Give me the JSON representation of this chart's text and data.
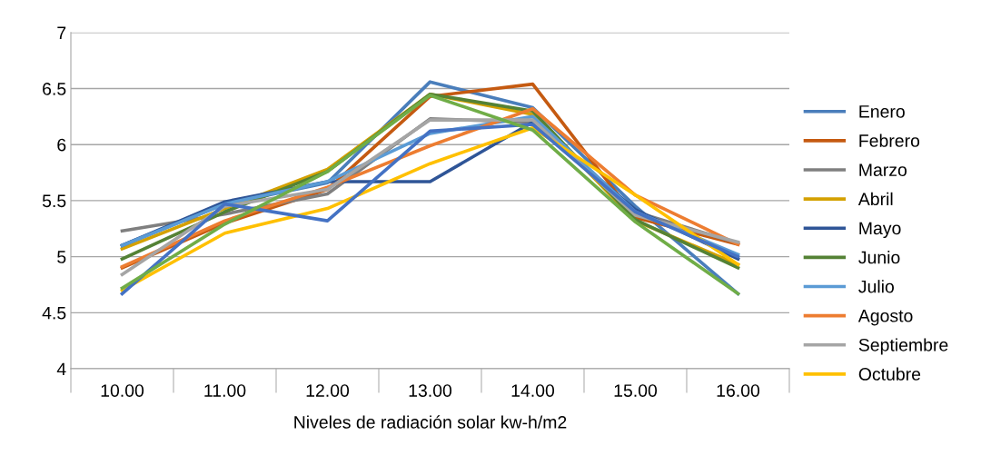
{
  "chart_data": {
    "type": "line",
    "xlabel": "Niveles de radiación solar kw-h/m2",
    "categories": [
      "10.00",
      "11.00",
      "12.00",
      "13.00",
      "14.00",
      "15.00",
      "16.00"
    ],
    "ylim": [
      4,
      7
    ],
    "yticks": [
      4,
      4.5,
      5,
      5.5,
      6,
      6.5,
      7
    ],
    "grid": "y",
    "legend": "right",
    "series": [
      {
        "name": "Enero",
        "color": "#4a7ebb",
        "values": [
          5.1,
          5.47,
          5.66,
          6.56,
          6.33,
          5.45,
          4.67
        ]
      },
      {
        "name": "Febrero",
        "color": "#c55a11",
        "values": [
          4.9,
          5.3,
          5.6,
          6.43,
          6.54,
          5.35,
          5.11
        ]
      },
      {
        "name": "Marzo",
        "color": "#7f7f7f",
        "values": [
          5.23,
          5.38,
          5.56,
          6.23,
          6.2,
          5.4,
          5.12
        ]
      },
      {
        "name": "Abril",
        "color": "#d4a100",
        "values": [
          5.07,
          5.43,
          5.78,
          6.45,
          6.27,
          5.32,
          4.93
        ]
      },
      {
        "name": "Mayo",
        "color": "#2f5597",
        "values": [
          5.1,
          5.49,
          5.67,
          5.67,
          6.2,
          5.42,
          4.98
        ]
      },
      {
        "name": "Junio",
        "color": "#548235",
        "values": [
          4.98,
          5.4,
          5.76,
          6.45,
          6.3,
          5.33,
          4.9
        ]
      },
      {
        "name": "Julio",
        "color": "#5b9bd5",
        "values": [
          5.1,
          5.47,
          5.67,
          6.1,
          6.25,
          5.4,
          5.02
        ]
      },
      {
        "name": "Agosto",
        "color": "#ed7d31",
        "values": [
          4.91,
          5.32,
          5.62,
          5.99,
          6.32,
          5.55,
          5.11
        ]
      },
      {
        "name": "Septiembre",
        "color": "#a5a5a5",
        "values": [
          4.84,
          5.45,
          5.6,
          6.22,
          6.22,
          5.37,
          5.13
        ]
      },
      {
        "name": "Octubre",
        "color": "#ffc000",
        "values": [
          4.7,
          5.21,
          5.43,
          5.83,
          6.15,
          5.55,
          4.93
        ]
      },
      {
        "color": "#4472c4",
        "values": [
          4.67,
          5.47,
          5.32,
          6.12,
          6.18,
          5.4,
          5.0
        ]
      },
      {
        "color": "#70ad47",
        "values": [
          4.72,
          5.29,
          5.76,
          6.44,
          6.13,
          5.31,
          4.67
        ]
      }
    ]
  }
}
